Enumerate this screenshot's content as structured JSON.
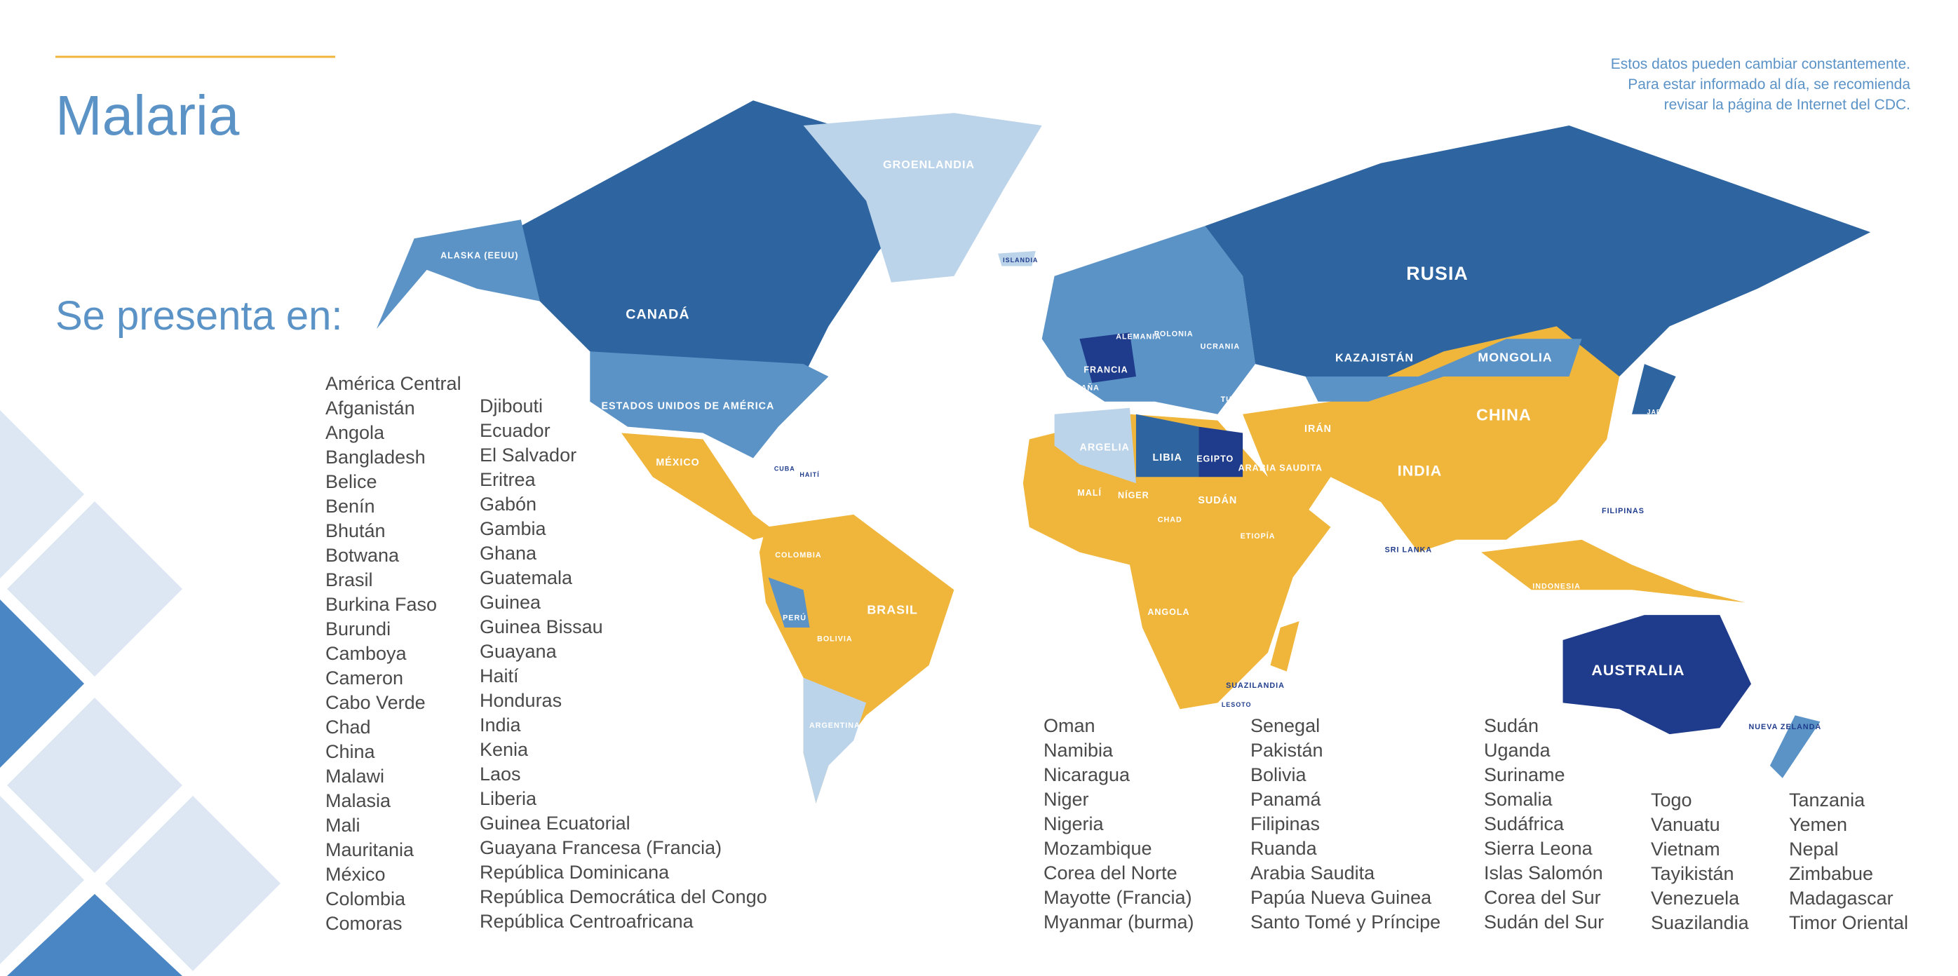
{
  "header": {
    "title": "Malaria",
    "subtitle": "Se presenta en:",
    "note": [
      "Estos datos pueden cambiar constantemente.",
      "Para estar informado al día, se recomienda",
      "revisar la página de Internet del CDC."
    ]
  },
  "lists": {
    "columns": [
      [
        "América Central",
        "Afganistán",
        "Angola",
        "Bangladesh",
        "Belice",
        "Benín",
        "Bhután",
        "Botwana",
        "Brasil",
        "Burkina Faso",
        "Burundi",
        "Camboya",
        "Cameron",
        "Cabo Verde",
        "Chad",
        "China",
        "Malawi",
        "Malasia",
        "Mali",
        "Mauritania",
        "México",
        "Colombia",
        "Comoras"
      ],
      [
        "Djibouti",
        "Ecuador",
        "El Salvador",
        "Eritrea",
        "Gabón",
        "Gambia",
        "Ghana",
        "Guatemala",
        "Guinea",
        "Guinea Bissau",
        "Guayana",
        "Haití",
        "Honduras",
        "India",
        "Kenia",
        "Laos",
        "Liberia",
        "Guinea Ecuatorial",
        "Guayana Francesa (Francia)",
        "República Dominicana",
        "República Democrática del Congo",
        "República Centroafricana"
      ],
      [
        "Oman",
        "Namibia",
        "Nicaragua",
        "Niger",
        "Nigeria",
        "Mozambique",
        "Corea del Norte",
        "Mayotte (Francia)",
        "Myanmar (burma)"
      ],
      [
        "Senegal",
        "Pakistán",
        "Bolivia",
        "Panamá",
        "Filipinas",
        "Ruanda",
        "Arabia Saudita",
        "Papúa Nueva Guinea",
        "Santo Tomé y Príncipe"
      ],
      [
        "Sudán",
        "Uganda",
        "Suriname",
        "Somalia",
        "Sudáfrica",
        "Sierra Leona",
        "Islas Salomón",
        "Corea del Sur",
        "Sudán del Sur"
      ],
      [
        "Togo",
        "Vanuatu",
        "Vietnam",
        "Tayikistán",
        "Venezuela",
        "Suazilandia"
      ],
      [
        "Tanzania",
        "Yemen",
        "Nepal",
        "Zimbabue",
        "Madagascar",
        "Timor Oriental"
      ]
    ]
  },
  "map": {
    "labels": [
      "GROENLANDIA",
      "ALASKA (EEUU)",
      "CANADÁ",
      "ESTADOS UNIDOS DE AMÉRICA",
      "MÉXICO",
      "RUSIA",
      "KAZAJISTÁN",
      "MONGOLIA",
      "CHINA",
      "INDIA",
      "IRÁN",
      "ARABIA SAUDITA",
      "EGIPTO",
      "LIBIA",
      "ARGELIA",
      "MALÍ",
      "NÍGER",
      "SUDÁN",
      "CHAD",
      "ETIOPÍA",
      "ANGOLA",
      "BRASIL",
      "PERÚ",
      "BOLIVIA",
      "ARGENTINA",
      "COLOMBIA",
      "AUSTRALIA",
      "INDONESIA",
      "FILIPINAS",
      "SRI LANKA",
      "FRANCIA",
      "ESPAÑA",
      "TURQUÍA",
      "UCRANIA",
      "POLONIA",
      "ALEMANIA",
      "NUEVA ZELANDA",
      "JAPÓN",
      "ISLANDIA",
      "SUAZILANDIA",
      "LESOTO",
      "CUBA",
      "HAITÍ"
    ]
  }
}
